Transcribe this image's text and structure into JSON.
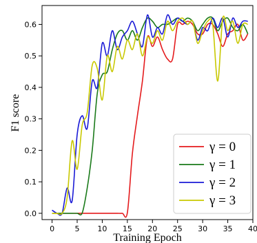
{
  "chart_data": {
    "type": "line",
    "xlabel": "Training Epoch",
    "ylabel": "F1 score",
    "xlim": [
      -2,
      40
    ],
    "ylim": [
      -0.02,
      0.66
    ],
    "xticks": [
      "0",
      "5",
      "10",
      "15",
      "20",
      "25",
      "30",
      "35",
      "40"
    ],
    "yticks": [
      "0.0",
      "0.1",
      "0.2",
      "0.3",
      "0.4",
      "0.5",
      "0.6"
    ],
    "grid": false,
    "legend_position": "bottom-right",
    "series": [
      {
        "name": "γ = 0",
        "color": "#e41a1c",
        "x": [
          0,
          1,
          2,
          3,
          4,
          5,
          6,
          7,
          8,
          9,
          10,
          11,
          12,
          13,
          14,
          15,
          16,
          17,
          18,
          19,
          20,
          21,
          22,
          23,
          24,
          25,
          26,
          27,
          28,
          29,
          30,
          31,
          32,
          33,
          34,
          35,
          36,
          37,
          38,
          39
        ],
        "y": [
          0,
          0,
          0,
          0,
          0,
          0,
          0,
          0,
          0,
          0,
          0,
          0,
          0,
          0,
          0,
          0.002,
          0.19,
          0.31,
          0.42,
          0.56,
          0.53,
          0.56,
          0.52,
          0.49,
          0.49,
          0.6,
          0.6,
          0.61,
          0.6,
          0.57,
          0.57,
          0.6,
          0.6,
          0.57,
          0.53,
          0.57,
          0.58,
          0.6,
          0.55,
          0.57
        ]
      },
      {
        "name": "γ = 1",
        "color": "#1a7a1a",
        "x": [
          0,
          1,
          2,
          3,
          4,
          5,
          6,
          7,
          8,
          9,
          10,
          11,
          12,
          13,
          14,
          15,
          16,
          17,
          18,
          19,
          20,
          21,
          22,
          23,
          24,
          25,
          26,
          27,
          28,
          29,
          30,
          31,
          32,
          33,
          34,
          35,
          36,
          37,
          38,
          39
        ],
        "y": [
          0,
          0,
          0,
          0,
          0,
          0,
          0.001,
          0.08,
          0.2,
          0.38,
          0.44,
          0.45,
          0.52,
          0.57,
          0.58,
          0.55,
          0.58,
          0.55,
          0.59,
          0.62,
          0.61,
          0.59,
          0.6,
          0.6,
          0.61,
          0.62,
          0.61,
          0.62,
          0.61,
          0.58,
          0.6,
          0.62,
          0.62,
          0.58,
          0.61,
          0.62,
          0.59,
          0.58,
          0.6,
          0.57
        ]
      },
      {
        "name": "γ = 2",
        "color": "#1a1ad6",
        "x": [
          0,
          1,
          2,
          3,
          4,
          5,
          6,
          7,
          8,
          9,
          10,
          11,
          12,
          13,
          14,
          15,
          16,
          17,
          18,
          19,
          20,
          21,
          22,
          23,
          24,
          25,
          26,
          27,
          28,
          29,
          30,
          31,
          32,
          33,
          34,
          35,
          36,
          37,
          38,
          39
        ],
        "y": [
          0.01,
          0,
          0,
          0.08,
          0.04,
          0.25,
          0.31,
          0.27,
          0.42,
          0.4,
          0.54,
          0.5,
          0.58,
          0.52,
          0.56,
          0.58,
          0.61,
          0.57,
          0.53,
          0.63,
          0.56,
          0.59,
          0.57,
          0.63,
          0.6,
          0.62,
          0.61,
          0.6,
          0.61,
          0.55,
          0.59,
          0.58,
          0.62,
          0.59,
          0.62,
          0.56,
          0.62,
          0.59,
          0.61,
          0.61
        ]
      },
      {
        "name": "γ = 3",
        "color": "#c8c800",
        "x": [
          0,
          1,
          2,
          3,
          4,
          5,
          6,
          7,
          8,
          9,
          10,
          11,
          12,
          13,
          14,
          15,
          16,
          17,
          18,
          19,
          20,
          21,
          22,
          23,
          24,
          25,
          26,
          27,
          28,
          29,
          30,
          31,
          32,
          33,
          34,
          35,
          36,
          37,
          38,
          39
        ],
        "y": [
          0,
          0,
          0,
          0.05,
          0.23,
          0.14,
          0.28,
          0.32,
          0.47,
          0.46,
          0.36,
          0.5,
          0.45,
          0.53,
          0.49,
          0.55,
          0.52,
          0.57,
          0.5,
          0.56,
          0.54,
          0.58,
          0.55,
          0.61,
          0.58,
          0.61,
          0.62,
          0.6,
          0.61,
          0.54,
          0.58,
          0.61,
          0.6,
          0.42,
          0.62,
          0.58,
          0.61,
          0.54,
          0.6,
          0.6
        ]
      }
    ]
  }
}
